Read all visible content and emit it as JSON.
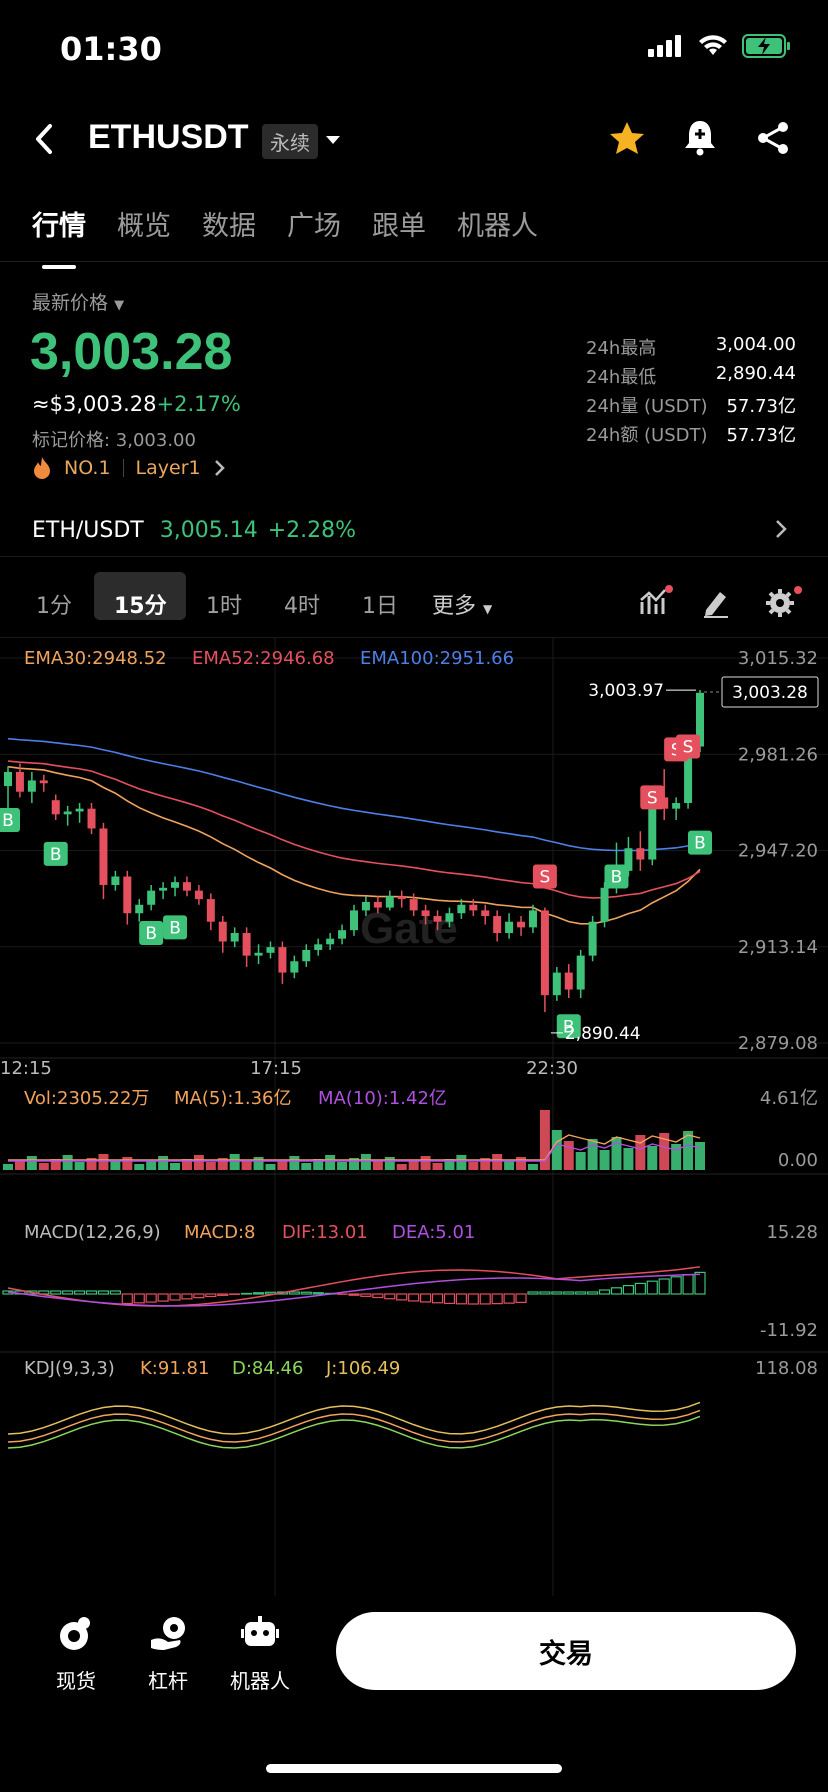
{
  "status": {
    "time": "01:30"
  },
  "header": {
    "title": "ETHUSDT",
    "badge": "永续"
  },
  "tabs": [
    "行情",
    "概览",
    "数据",
    "广场",
    "跟单",
    "机器人"
  ],
  "price": {
    "label": "最新价格",
    "last": "3,003.28",
    "usd": "≈$3,003.28",
    "change": "+2.17%",
    "mark": "标记价格: 3,003.00",
    "rank": "NO.1",
    "category": "Layer1"
  },
  "stats": [
    {
      "label": "24h最高",
      "value": "3,004.00"
    },
    {
      "label": "24h最低",
      "value": "2,890.44"
    },
    {
      "label": "24h量 (USDT)",
      "value": "57.73亿"
    },
    {
      "label": "24h额 (USDT)",
      "value": "57.73亿"
    }
  ],
  "spot": {
    "pair": "ETH/USDT",
    "price": "3,005.14",
    "change": "+2.28%"
  },
  "timeframes": [
    "1分",
    "15分",
    "1时",
    "4时",
    "1日",
    "更多"
  ],
  "colors": {
    "up": "#3ec27a",
    "down": "#e5505f",
    "ema30": "#f0a35c",
    "ema52": "#e5505f",
    "ema100": "#4d7fe8",
    "ma10": "#b04fe0",
    "kdj_k": "#f0a35c",
    "kdj_d": "#8ad65a",
    "kdj_j": "#e5c05a"
  },
  "chart_data": {
    "type": "candlestick",
    "indicators": {
      "ema30": "EMA30:2948.52",
      "ema52": "EMA52:2946.68",
      "ema100": "EMA100:2951.66"
    },
    "y_ticks": [
      "3,015.32",
      "2,981.26",
      "2,947.20",
      "2,913.14",
      "2,879.08"
    ],
    "x_ticks": [
      "12:15",
      "17:15",
      "22:30"
    ],
    "high_label": "3,003.97",
    "low_label": "2,890.44",
    "current_label": "3,003.28",
    "watermark": "Gate",
    "volume": {
      "label": "Vol:2305.22万",
      "ma5": "MA(5):1.36亿",
      "ma10": "MA(10):1.42亿",
      "top": "4.61亿",
      "bottom": "0.00"
    },
    "macd": {
      "label": "MACD(12,26,9)",
      "macd": "MACD:8",
      "dif": "DIF:13.01",
      "dea": "DEA:5.01",
      "top": "15.28",
      "bottom": "-11.92"
    },
    "kdj": {
      "label": "KDJ(9,3,3)",
      "k": "K:91.81",
      "d": "D:84.46",
      "j": "J:106.49",
      "top": "118.08"
    },
    "candles": [
      [
        2970,
        2975,
        2960,
        2977
      ],
      [
        2975,
        2968,
        2966,
        2978
      ],
      [
        2968,
        2972,
        2964,
        2975
      ],
      [
        2972,
        2971,
        2968,
        2974
      ],
      [
        2965,
        2960,
        2958,
        2967
      ],
      [
        2960,
        2961,
        2956,
        2963
      ],
      [
        2961,
        2962,
        2957,
        2964
      ],
      [
        2962,
        2955,
        2953,
        2964
      ],
      [
        2955,
        2935,
        2930,
        2957
      ],
      [
        2935,
        2938,
        2933,
        2940
      ],
      [
        2938,
        2925,
        2921,
        2940
      ],
      [
        2925,
        2928,
        2922,
        2930
      ],
      [
        2928,
        2933,
        2926,
        2935
      ],
      [
        2933,
        2934,
        2930,
        2936
      ],
      [
        2934,
        2936,
        2931,
        2938
      ],
      [
        2936,
        2933,
        2931,
        2938
      ],
      [
        2933,
        2930,
        2928,
        2935
      ],
      [
        2930,
        2922,
        2919,
        2932
      ],
      [
        2922,
        2915,
        2911,
        2924
      ],
      [
        2915,
        2918,
        2913,
        2920
      ],
      [
        2918,
        2910,
        2906,
        2920
      ],
      [
        2910,
        2911,
        2907,
        2914
      ],
      [
        2911,
        2913,
        2909,
        2915
      ],
      [
        2913,
        2904,
        2900,
        2915
      ],
      [
        2904,
        2908,
        2902,
        2910
      ],
      [
        2908,
        2912,
        2906,
        2914
      ],
      [
        2912,
        2914,
        2910,
        2916
      ],
      [
        2914,
        2916,
        2912,
        2918
      ],
      [
        2916,
        2919,
        2914,
        2921
      ],
      [
        2919,
        2926,
        2917,
        2928
      ],
      [
        2926,
        2929,
        2924,
        2931
      ],
      [
        2929,
        2927,
        2925,
        2931
      ],
      [
        2927,
        2931,
        2926,
        2933
      ],
      [
        2931,
        2930,
        2927,
        2933
      ],
      [
        2930,
        2926,
        2924,
        2932
      ],
      [
        2926,
        2924,
        2921,
        2928
      ],
      [
        2924,
        2922,
        2919,
        2926
      ],
      [
        2922,
        2925,
        2920,
        2927
      ],
      [
        2925,
        2928,
        2923,
        2930
      ],
      [
        2928,
        2926,
        2924,
        2930
      ],
      [
        2926,
        2924,
        2921,
        2928
      ],
      [
        2924,
        2918,
        2915,
        2926
      ],
      [
        2918,
        2922,
        2916,
        2925
      ],
      [
        2922,
        2920,
        2917,
        2924
      ],
      [
        2920,
        2926,
        2918,
        2928
      ],
      [
        2926,
        2896,
        2890,
        2927
      ],
      [
        2896,
        2904,
        2894,
        2906
      ],
      [
        2904,
        2898,
        2895,
        2907
      ],
      [
        2898,
        2910,
        2895,
        2912
      ],
      [
        2910,
        2922,
        2908,
        2924
      ],
      [
        2922,
        2934,
        2920,
        2936
      ],
      [
        2934,
        2940,
        2932,
        2950
      ],
      [
        2940,
        2948,
        2938,
        2952
      ],
      [
        2948,
        2944,
        2940,
        2954
      ],
      [
        2944,
        2966,
        2942,
        2968
      ],
      [
        2966,
        2962,
        2958,
        2976
      ],
      [
        2962,
        2964,
        2958,
        2966
      ],
      [
        2964,
        2984,
        2962,
        2986
      ],
      [
        2984,
        3003,
        2982,
        3004
      ]
    ]
  },
  "bottom_nav": {
    "spot": "现货",
    "margin": "杠杆",
    "bot": "机器人",
    "trade": "交易"
  }
}
